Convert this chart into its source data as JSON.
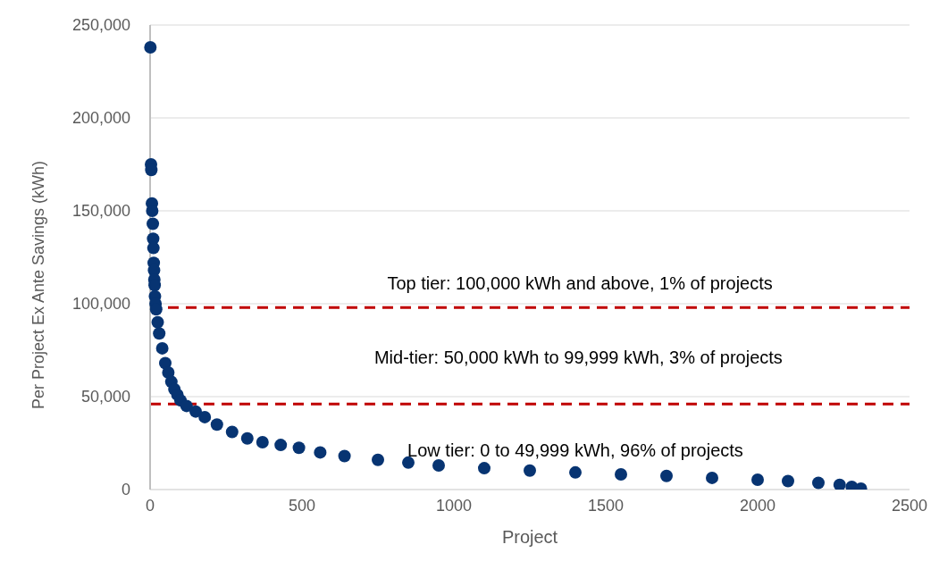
{
  "chart_data": {
    "type": "scatter",
    "xlabel": "Project",
    "ylabel": "Per Project Ex Ante Savings (kWh)",
    "x": [
      1,
      3,
      4,
      6,
      7,
      9,
      10,
      11,
      12,
      13,
      14,
      15,
      16,
      18,
      20,
      25,
      30,
      40,
      50,
      60,
      70,
      80,
      90,
      100,
      120,
      150,
      180,
      220,
      270,
      320,
      370,
      430,
      490,
      560,
      640,
      750,
      850,
      950,
      1100,
      1250,
      1400,
      1550,
      1700,
      1850,
      2000,
      2100,
      2200,
      2270,
      2310,
      2340
    ],
    "values": [
      238000,
      175000,
      172000,
      154000,
      150000,
      143000,
      135000,
      130000,
      122000,
      118000,
      113000,
      110000,
      104000,
      100000,
      97000,
      90000,
      84000,
      76000,
      68000,
      63000,
      58000,
      54000,
      51000,
      48000,
      45000,
      42000,
      39000,
      35000,
      31000,
      27500,
      25500,
      24000,
      22500,
      20000,
      18000,
      16000,
      14500,
      13000,
      11500,
      10200,
      9200,
      8200,
      7300,
      6300,
      5300,
      4600,
      3600,
      2500,
      1500,
      500
    ],
    "color": "#073472",
    "marker": "circle",
    "grid": "y",
    "legend": false,
    "xlim": [
      0,
      2500
    ],
    "xticks": [
      0,
      500,
      1000,
      1500,
      2000,
      2500
    ],
    "ylim": [
      0,
      250000
    ],
    "yticks": [
      {
        "value": 0,
        "label": "0"
      },
      {
        "value": 50000,
        "label": "50,000"
      },
      {
        "value": 100000,
        "label": "100,000"
      },
      {
        "value": 150000,
        "label": "150,000"
      },
      {
        "value": 200000,
        "label": "200,000"
      },
      {
        "value": 250000,
        "label": "250,000"
      }
    ],
    "ref_lines": [
      {
        "axis": "y",
        "value": 98000,
        "color": "#c00000",
        "line_style": "dashed"
      },
      {
        "axis": "y",
        "value": 46000,
        "color": "#c00000",
        "line_style": "dashed"
      }
    ],
    "annotations": [
      "Top tier: 100,000 kWh and above, 1% of projects",
      "Mid-tier: 50,000 kWh to 99,999 kWh, 3% of projects",
      "Low tier: 0 to 49,999 kWh, 96% of projects"
    ]
  }
}
